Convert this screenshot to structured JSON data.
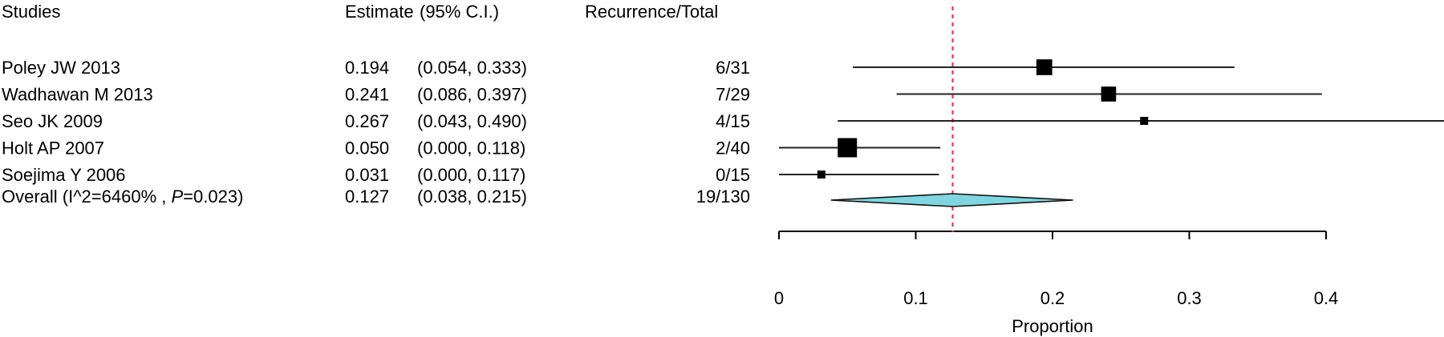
{
  "header": {
    "studies": "Studies",
    "estimate": "Estimate",
    "ci": "(95% C.I.)",
    "recurrence_total": "Recurrence/Total"
  },
  "overall": {
    "label_prefix": "Overall (I^2=6460% , ",
    "p_symbol": "P",
    "p_value": "=0.023)"
  },
  "colors": {
    "reference_line": "#e8384f",
    "diamond_fill": "#7fd6e0",
    "marker": "#000000"
  },
  "chart_data": {
    "type": "forest",
    "xlabel": "Proportion",
    "xlim": [
      0,
      0.4
    ],
    "x_ticks": [
      0,
      0.1,
      0.2,
      0.3,
      0.4
    ],
    "x_tick_labels": [
      "0",
      "0.1",
      "0.2",
      "0.3",
      "0.4"
    ],
    "reference_value": 0.127,
    "studies": [
      {
        "name": "Poley JW 2013",
        "estimate": 0.194,
        "lower": 0.054,
        "upper": 0.333,
        "estimate_text": "0.194",
        "ci_text": "(0.054, 0.333)",
        "recurrence_total": "6/31",
        "n": 31
      },
      {
        "name": "Wadhawan M 2013",
        "estimate": 0.241,
        "lower": 0.086,
        "upper": 0.397,
        "estimate_text": "0.241",
        "ci_text": "(0.086, 0.397)",
        "recurrence_total": "7/29",
        "n": 29
      },
      {
        "name": "Seo JK 2009",
        "estimate": 0.267,
        "lower": 0.043,
        "upper": 0.49,
        "estimate_text": "0.267",
        "ci_text": "(0.043, 0.490)",
        "recurrence_total": "4/15",
        "n": 15
      },
      {
        "name": "Holt AP 2007",
        "estimate": 0.05,
        "lower": 0.0,
        "upper": 0.118,
        "estimate_text": "0.050",
        "ci_text": "(0.000, 0.118)",
        "recurrence_total": "2/40",
        "n": 40
      },
      {
        "name": "Soejima Y 2006",
        "estimate": 0.031,
        "lower": 0.0,
        "upper": 0.117,
        "estimate_text": "0.031",
        "ci_text": "(0.000, 0.117)",
        "recurrence_total": "0/15",
        "n": 15
      }
    ],
    "overall": {
      "estimate": 0.127,
      "lower": 0.038,
      "upper": 0.215,
      "estimate_text": "0.127",
      "ci_text": "(0.038, 0.215)",
      "recurrence_total": "19/130"
    }
  }
}
